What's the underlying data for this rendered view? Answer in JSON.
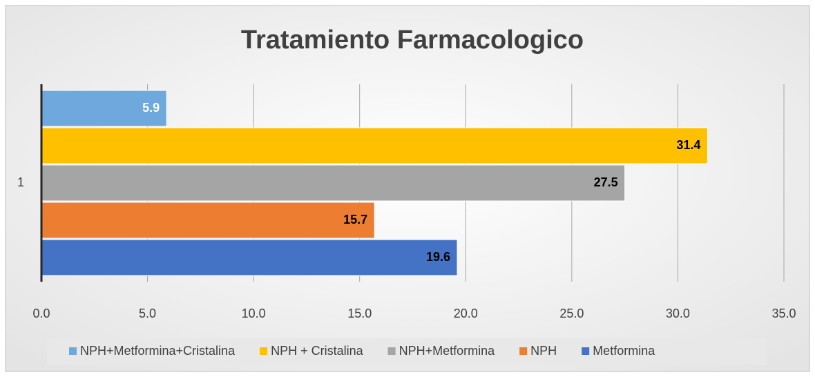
{
  "chart_data": {
    "type": "hbar",
    "title": "Tratamiento Farmacologico",
    "categories": [
      "1"
    ],
    "series": [
      {
        "name": "NPH+Metformina+Cristalina",
        "color": "#6fa8dc",
        "label_color": "#ffffff",
        "values": [
          5.9
        ]
      },
      {
        "name": "NPH + Cristalina",
        "color": "#ffc000",
        "label_color": "#000000",
        "values": [
          31.4
        ]
      },
      {
        "name": "NPH+Metformina",
        "color": "#a5a5a5",
        "label_color": "#000000",
        "values": [
          27.5
        ]
      },
      {
        "name": "NPH",
        "color": "#ed7d31",
        "label_color": "#000000",
        "values": [
          15.7
        ]
      },
      {
        "name": "Metformina",
        "color": "#4472c4",
        "label_color": "#000000",
        "values": [
          19.6
        ]
      }
    ],
    "xlim": [
      0,
      35
    ],
    "xticks": [
      {
        "value": 0,
        "label": "0.0"
      },
      {
        "value": 5,
        "label": "5.0"
      },
      {
        "value": 10,
        "label": "10.0"
      },
      {
        "value": 15,
        "label": "15.0"
      },
      {
        "value": 20,
        "label": "20.0"
      },
      {
        "value": 25,
        "label": "25.0"
      },
      {
        "value": 30,
        "label": "30.0"
      },
      {
        "value": 35,
        "label": "35.0"
      }
    ],
    "grid": true,
    "legend": "bottom"
  }
}
